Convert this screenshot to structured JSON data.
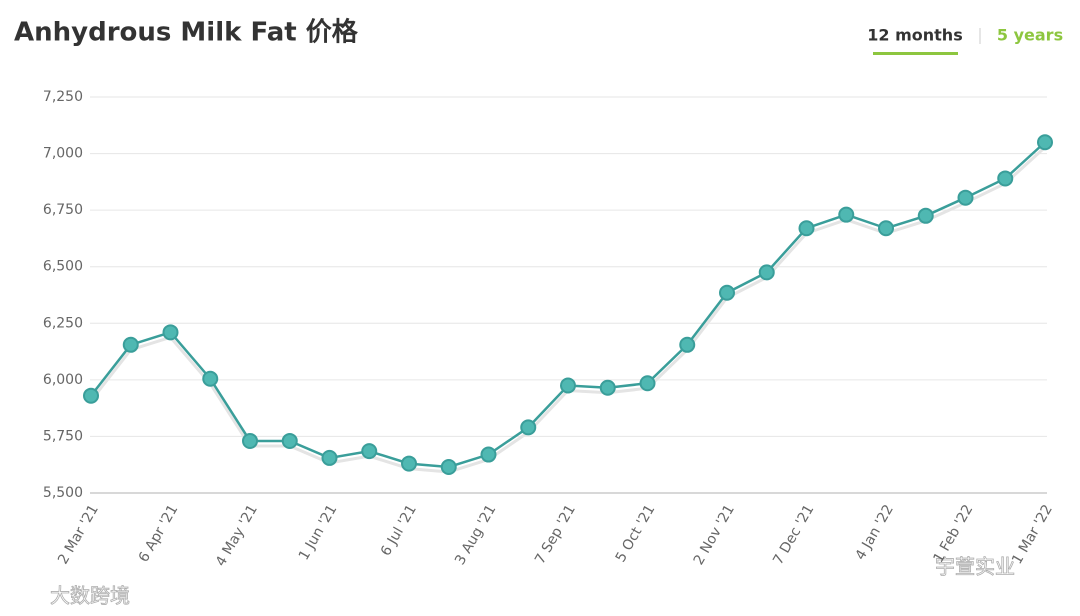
{
  "chart_data": {
    "type": "line",
    "title": "Anhydrous Milk Fat 价格",
    "tabs": [
      "12 months",
      "5 years"
    ],
    "active_tab": 0,
    "categories": [
      "2 Mar '21",
      null,
      "6 Apr '21",
      null,
      "4 May '21",
      null,
      "1 Jun '21",
      null,
      "6 Jul '21",
      null,
      "3 Aug '21",
      null,
      "7 Sep '21",
      null,
      "5 Oct '21",
      null,
      "2 Nov '21",
      null,
      "7 Dec '21",
      null,
      "4 Jan '22",
      null,
      "1 Feb '22",
      null,
      "1 Mar '22"
    ],
    "values": [
      5930,
      6155,
      6210,
      6005,
      5730,
      5730,
      5655,
      5685,
      5630,
      5615,
      5670,
      5790,
      5975,
      5965,
      5985,
      6155,
      6385,
      6475,
      6670,
      6730,
      6670,
      6725,
      6805,
      6890,
      7050
    ],
    "color": "#3a9e9a",
    "ylim": [
      5500,
      7250
    ],
    "yticks": [
      {
        "value": 5500,
        "label": "5,500"
      },
      {
        "value": 5750,
        "label": "5,750"
      },
      {
        "value": 6000,
        "label": "6,000"
      },
      {
        "value": 6250,
        "label": "6,250"
      },
      {
        "value": 6500,
        "label": "6,500"
      },
      {
        "value": 6750,
        "label": "6,750"
      },
      {
        "value": 7000,
        "label": "7,000"
      },
      {
        "value": 7250,
        "label": "7,250"
      }
    ],
    "grid": true,
    "watermarks": [
      "大数跨境",
      "宇萱实业"
    ]
  }
}
